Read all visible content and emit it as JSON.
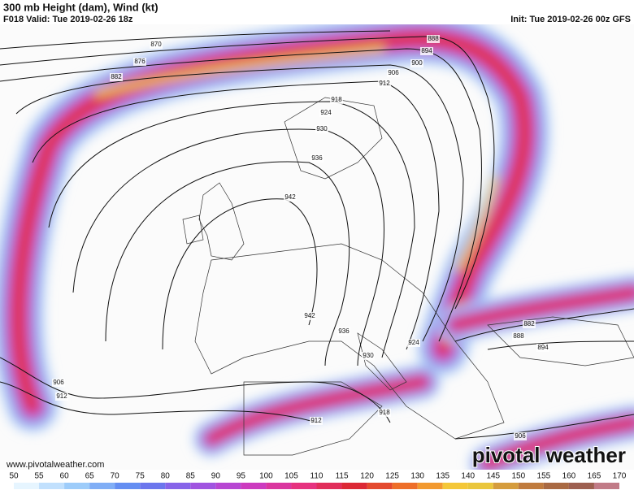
{
  "header": {
    "title": "300 mb Height (dam), Wind (kt)",
    "valid": "F018 Valid: Tue 2019-02-26 18z",
    "init": "Init: Tue 2019-02-26 00z GFS"
  },
  "map": {
    "contour_labels": [
      "870",
      "876",
      "882",
      "888",
      "894",
      "900",
      "906",
      "912",
      "918",
      "924",
      "930",
      "936",
      "942",
      "942",
      "936",
      "930",
      "924",
      "918",
      "912",
      "906",
      "912",
      "882",
      "888",
      "894",
      "906"
    ]
  },
  "footer": {
    "website": "www.pivotalweather.com",
    "watermark": "pivotal weather"
  },
  "colorbar": {
    "ticks": [
      50,
      55,
      60,
      65,
      70,
      75,
      80,
      85,
      90,
      95,
      100,
      105,
      110,
      115,
      120,
      125,
      130,
      135,
      140,
      145,
      150,
      155,
      160,
      165,
      170
    ]
  }
}
